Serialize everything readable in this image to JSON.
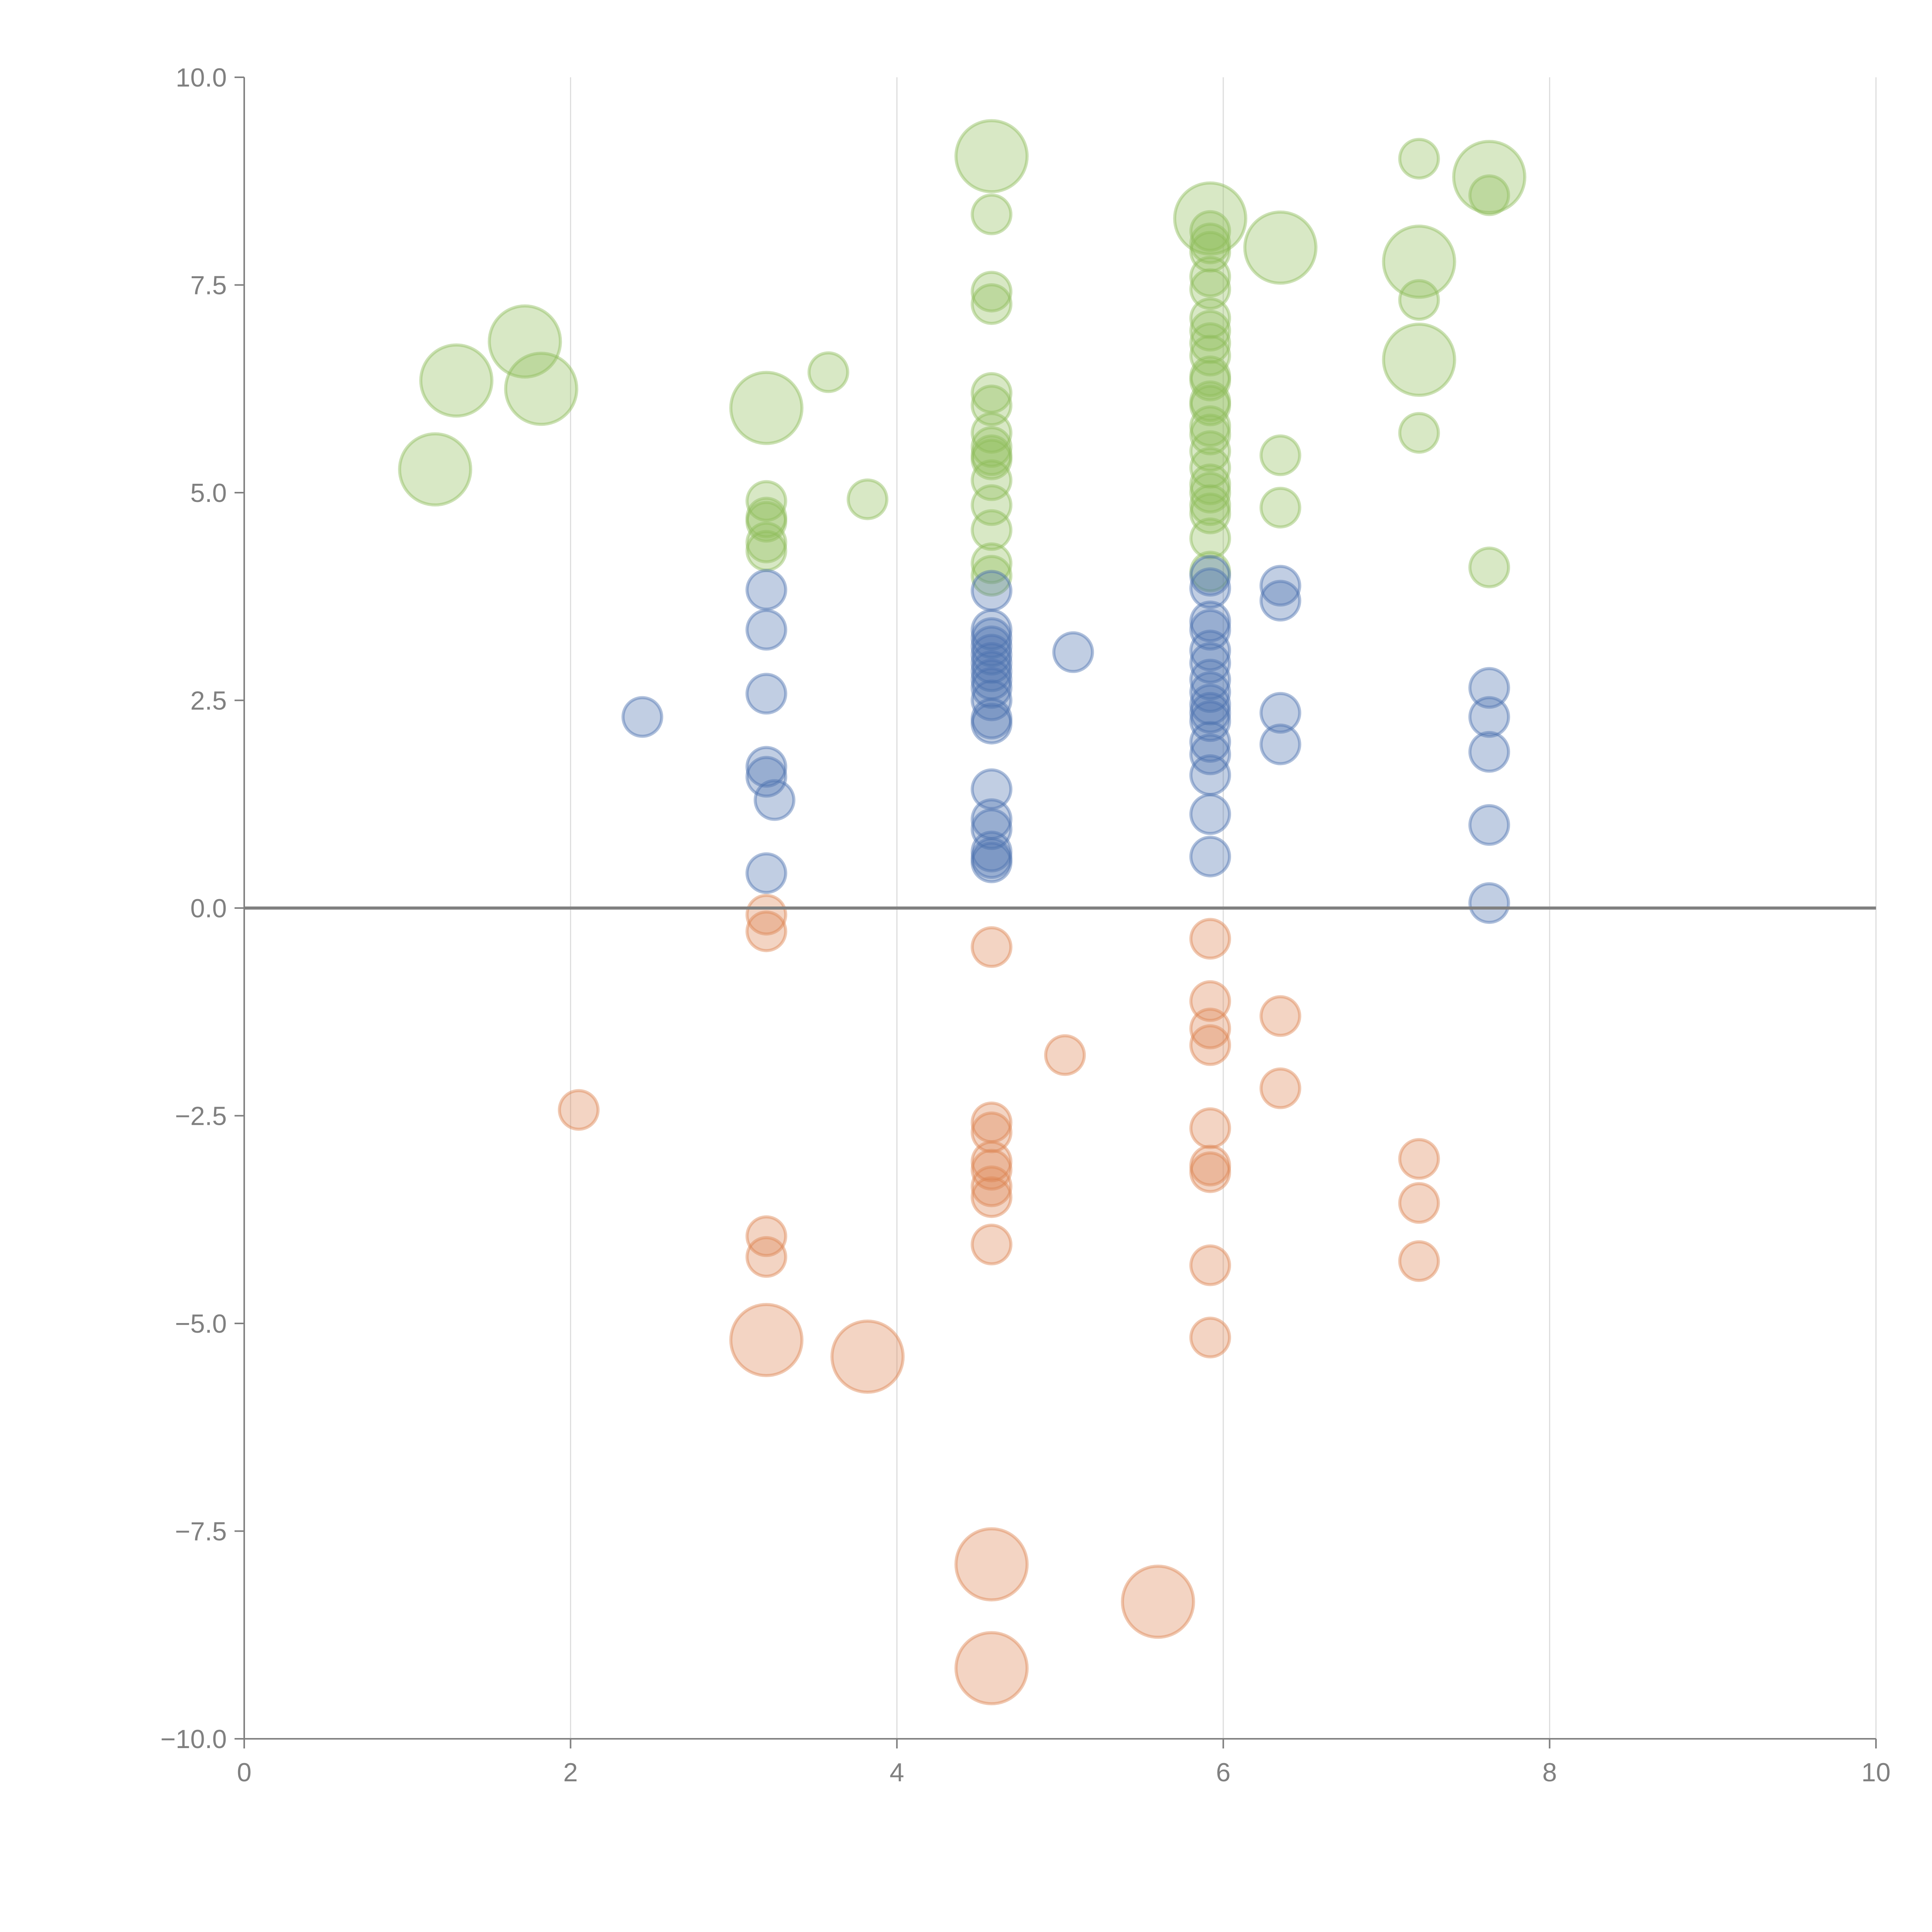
{
  "chart_data": {
    "type": "scatter",
    "title": "",
    "xlabel": "",
    "ylabel": "",
    "xlim": [
      0,
      10
    ],
    "ylim": [
      -10,
      10
    ],
    "x_ticks": [
      "0",
      "2",
      "4",
      "6",
      "8",
      "10"
    ],
    "y_ticks": [
      "−10.0",
      "−7.5",
      "−5.0",
      "−2.5",
      "0.0",
      "2.5",
      "5.0",
      "7.5",
      "10.0"
    ],
    "grid": "vertical",
    "zero_line": true,
    "colors": {
      "green": "#8fbc5a",
      "blue": "#4c72b0",
      "orange": "#dd8452"
    },
    "series": [
      {
        "name": "green",
        "color": "#8fbc5a",
        "points": [
          {
            "x": 1.17,
            "y": 5.28,
            "s": "l"
          },
          {
            "x": 1.3,
            "y": 6.35,
            "s": "l"
          },
          {
            "x": 1.72,
            "y": 6.82,
            "s": "l"
          },
          {
            "x": 1.82,
            "y": 6.25,
            "s": "l"
          },
          {
            "x": 3.2,
            "y": 6.02,
            "s": "l"
          },
          {
            "x": 3.58,
            "y": 6.45,
            "s": "m"
          },
          {
            "x": 3.82,
            "y": 4.92,
            "s": "m"
          },
          {
            "x": 3.2,
            "y": 4.9,
            "s": "m"
          },
          {
            "x": 3.2,
            "y": 4.7,
            "s": "m"
          },
          {
            "x": 3.2,
            "y": 4.65,
            "s": "m"
          },
          {
            "x": 3.2,
            "y": 4.4,
            "s": "m"
          },
          {
            "x": 3.2,
            "y": 4.3,
            "s": "m"
          },
          {
            "x": 4.58,
            "y": 9.05,
            "s": "l"
          },
          {
            "x": 4.58,
            "y": 8.35,
            "s": "m"
          },
          {
            "x": 4.58,
            "y": 7.42,
            "s": "m"
          },
          {
            "x": 4.58,
            "y": 7.27,
            "s": "m"
          },
          {
            "x": 4.58,
            "y": 6.2,
            "s": "m"
          },
          {
            "x": 4.58,
            "y": 6.05,
            "s": "m"
          },
          {
            "x": 4.58,
            "y": 5.72,
            "s": "m"
          },
          {
            "x": 4.58,
            "y": 5.55,
            "s": "m"
          },
          {
            "x": 4.58,
            "y": 5.45,
            "s": "m"
          },
          {
            "x": 4.58,
            "y": 5.4,
            "s": "m"
          },
          {
            "x": 4.58,
            "y": 5.15,
            "s": "m"
          },
          {
            "x": 4.58,
            "y": 4.85,
            "s": "m"
          },
          {
            "x": 4.58,
            "y": 4.55,
            "s": "m"
          },
          {
            "x": 4.58,
            "y": 4.15,
            "s": "m"
          },
          {
            "x": 4.58,
            "y": 4.0,
            "s": "m"
          },
          {
            "x": 5.92,
            "y": 8.3,
            "s": "l"
          },
          {
            "x": 5.92,
            "y": 8.15,
            "s": "m"
          },
          {
            "x": 5.92,
            "y": 8.0,
            "s": "m"
          },
          {
            "x": 5.92,
            "y": 7.9,
            "s": "m"
          },
          {
            "x": 5.92,
            "y": 7.6,
            "s": "m"
          },
          {
            "x": 5.92,
            "y": 7.45,
            "s": "m"
          },
          {
            "x": 5.92,
            "y": 7.1,
            "s": "m"
          },
          {
            "x": 5.92,
            "y": 6.95,
            "s": "m"
          },
          {
            "x": 5.92,
            "y": 6.8,
            "s": "m"
          },
          {
            "x": 5.92,
            "y": 6.65,
            "s": "m"
          },
          {
            "x": 5.92,
            "y": 6.4,
            "s": "m"
          },
          {
            "x": 5.92,
            "y": 6.35,
            "s": "m"
          },
          {
            "x": 5.92,
            "y": 6.1,
            "s": "m"
          },
          {
            "x": 5.92,
            "y": 6.05,
            "s": "m"
          },
          {
            "x": 5.92,
            "y": 5.8,
            "s": "m"
          },
          {
            "x": 5.92,
            "y": 5.7,
            "s": "m"
          },
          {
            "x": 5.92,
            "y": 5.5,
            "s": "m"
          },
          {
            "x": 5.92,
            "y": 5.3,
            "s": "m"
          },
          {
            "x": 5.92,
            "y": 5.1,
            "s": "m"
          },
          {
            "x": 5.92,
            "y": 5.0,
            "s": "m"
          },
          {
            "x": 5.92,
            "y": 4.85,
            "s": "m"
          },
          {
            "x": 5.92,
            "y": 4.75,
            "s": "m"
          },
          {
            "x": 5.92,
            "y": 4.45,
            "s": "m"
          },
          {
            "x": 5.92,
            "y": 4.05,
            "s": "m"
          },
          {
            "x": 6.35,
            "y": 7.95,
            "s": "l"
          },
          {
            "x": 6.35,
            "y": 5.45,
            "s": "m"
          },
          {
            "x": 6.35,
            "y": 4.82,
            "s": "m"
          },
          {
            "x": 7.2,
            "y": 9.02,
            "s": "m"
          },
          {
            "x": 7.2,
            "y": 7.78,
            "s": "l"
          },
          {
            "x": 7.2,
            "y": 7.32,
            "s": "m"
          },
          {
            "x": 7.2,
            "y": 6.6,
            "s": "l"
          },
          {
            "x": 7.2,
            "y": 5.72,
            "s": "m"
          },
          {
            "x": 7.63,
            "y": 8.8,
            "s": "l"
          },
          {
            "x": 7.63,
            "y": 8.58,
            "s": "m"
          },
          {
            "x": 7.63,
            "y": 4.1,
            "s": "m"
          }
        ]
      },
      {
        "name": "blue",
        "color": "#4c72b0",
        "points": [
          {
            "x": 2.44,
            "y": 2.3,
            "s": "m"
          },
          {
            "x": 3.2,
            "y": 3.83,
            "s": "m"
          },
          {
            "x": 3.2,
            "y": 3.35,
            "s": "m"
          },
          {
            "x": 3.2,
            "y": 2.58,
            "s": "m"
          },
          {
            "x": 3.2,
            "y": 1.7,
            "s": "m"
          },
          {
            "x": 3.2,
            "y": 1.58,
            "s": "m"
          },
          {
            "x": 3.25,
            "y": 1.3,
            "s": "m"
          },
          {
            "x": 3.2,
            "y": 0.42,
            "s": "m"
          },
          {
            "x": 4.58,
            "y": 3.82,
            "s": "m"
          },
          {
            "x": 4.58,
            "y": 3.35,
            "s": "m"
          },
          {
            "x": 4.58,
            "y": 3.25,
            "s": "m"
          },
          {
            "x": 4.58,
            "y": 3.15,
            "s": "m"
          },
          {
            "x": 4.58,
            "y": 3.05,
            "s": "m"
          },
          {
            "x": 4.58,
            "y": 2.95,
            "s": "m"
          },
          {
            "x": 4.58,
            "y": 2.85,
            "s": "m"
          },
          {
            "x": 4.58,
            "y": 2.75,
            "s": "m"
          },
          {
            "x": 4.58,
            "y": 2.65,
            "s": "m"
          },
          {
            "x": 4.58,
            "y": 2.5,
            "s": "m"
          },
          {
            "x": 4.58,
            "y": 2.28,
            "s": "m"
          },
          {
            "x": 4.58,
            "y": 2.22,
            "s": "m"
          },
          {
            "x": 4.58,
            "y": 1.43,
            "s": "m"
          },
          {
            "x": 4.58,
            "y": 1.07,
            "s": "m"
          },
          {
            "x": 4.58,
            "y": 0.95,
            "s": "m"
          },
          {
            "x": 4.58,
            "y": 0.68,
            "s": "m"
          },
          {
            "x": 4.58,
            "y": 0.6,
            "s": "m"
          },
          {
            "x": 4.58,
            "y": 0.55,
            "s": "m"
          },
          {
            "x": 5.08,
            "y": 3.08,
            "s": "m"
          },
          {
            "x": 5.92,
            "y": 4.0,
            "s": "m"
          },
          {
            "x": 5.92,
            "y": 3.85,
            "s": "m"
          },
          {
            "x": 5.92,
            "y": 3.45,
            "s": "m"
          },
          {
            "x": 5.92,
            "y": 3.35,
            "s": "m"
          },
          {
            "x": 5.92,
            "y": 3.1,
            "s": "m"
          },
          {
            "x": 5.92,
            "y": 2.95,
            "s": "m"
          },
          {
            "x": 5.92,
            "y": 2.75,
            "s": "m"
          },
          {
            "x": 5.92,
            "y": 2.6,
            "s": "m"
          },
          {
            "x": 5.92,
            "y": 2.45,
            "s": "m"
          },
          {
            "x": 5.92,
            "y": 2.35,
            "s": "m"
          },
          {
            "x": 5.92,
            "y": 2.25,
            "s": "m"
          },
          {
            "x": 5.92,
            "y": 2.0,
            "s": "m"
          },
          {
            "x": 5.92,
            "y": 1.85,
            "s": "m"
          },
          {
            "x": 5.92,
            "y": 1.6,
            "s": "m"
          },
          {
            "x": 5.92,
            "y": 1.13,
            "s": "m"
          },
          {
            "x": 5.92,
            "y": 0.62,
            "s": "m"
          },
          {
            "x": 6.35,
            "y": 3.88,
            "s": "m"
          },
          {
            "x": 6.35,
            "y": 3.7,
            "s": "m"
          },
          {
            "x": 6.35,
            "y": 2.35,
            "s": "m"
          },
          {
            "x": 6.35,
            "y": 1.97,
            "s": "m"
          },
          {
            "x": 7.63,
            "y": 2.65,
            "s": "m"
          },
          {
            "x": 7.63,
            "y": 2.3,
            "s": "m"
          },
          {
            "x": 7.63,
            "y": 1.88,
            "s": "m"
          },
          {
            "x": 7.63,
            "y": 1.0,
            "s": "m"
          },
          {
            "x": 7.63,
            "y": 0.06,
            "s": "m"
          }
        ]
      },
      {
        "name": "orange",
        "color": "#dd8452",
        "points": [
          {
            "x": 2.05,
            "y": -2.43,
            "s": "m"
          },
          {
            "x": 3.2,
            "y": -0.08,
            "s": "m"
          },
          {
            "x": 3.2,
            "y": -0.28,
            "s": "m"
          },
          {
            "x": 3.2,
            "y": -3.95,
            "s": "m"
          },
          {
            "x": 3.2,
            "y": -4.2,
            "s": "m"
          },
          {
            "x": 3.2,
            "y": -5.2,
            "s": "l"
          },
          {
            "x": 3.82,
            "y": -5.4,
            "s": "l"
          },
          {
            "x": 4.58,
            "y": -0.47,
            "s": "m"
          },
          {
            "x": 4.58,
            "y": -2.58,
            "s": "m"
          },
          {
            "x": 4.58,
            "y": -2.7,
            "s": "m"
          },
          {
            "x": 4.58,
            "y": -3.05,
            "s": "m"
          },
          {
            "x": 4.58,
            "y": -3.15,
            "s": "m"
          },
          {
            "x": 4.58,
            "y": -3.35,
            "s": "m"
          },
          {
            "x": 4.58,
            "y": -3.48,
            "s": "m"
          },
          {
            "x": 4.58,
            "y": -4.05,
            "s": "m"
          },
          {
            "x": 4.58,
            "y": -7.9,
            "s": "l"
          },
          {
            "x": 4.58,
            "y": -9.15,
            "s": "l"
          },
          {
            "x": 5.03,
            "y": -1.77,
            "s": "m"
          },
          {
            "x": 5.6,
            "y": -8.35,
            "s": "l"
          },
          {
            "x": 5.92,
            "y": -0.37,
            "s": "m"
          },
          {
            "x": 5.92,
            "y": -1.12,
            "s": "m"
          },
          {
            "x": 5.92,
            "y": -1.45,
            "s": "m"
          },
          {
            "x": 5.92,
            "y": -1.65,
            "s": "m"
          },
          {
            "x": 5.92,
            "y": -2.65,
            "s": "m"
          },
          {
            "x": 5.92,
            "y": -3.1,
            "s": "m"
          },
          {
            "x": 5.92,
            "y": -3.18,
            "s": "m"
          },
          {
            "x": 5.92,
            "y": -4.3,
            "s": "m"
          },
          {
            "x": 5.92,
            "y": -5.17,
            "s": "m"
          },
          {
            "x": 6.35,
            "y": -1.3,
            "s": "m"
          },
          {
            "x": 6.35,
            "y": -2.17,
            "s": "m"
          },
          {
            "x": 7.2,
            "y": -3.02,
            "s": "m"
          },
          {
            "x": 7.2,
            "y": -3.55,
            "s": "m"
          },
          {
            "x": 7.2,
            "y": -4.25,
            "s": "m"
          }
        ]
      }
    ]
  }
}
